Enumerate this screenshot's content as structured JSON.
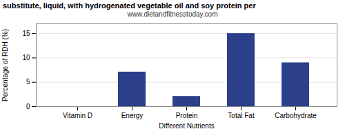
{
  "chart_data": {
    "type": "bar",
    "title": "substitute, liquid, with hydrogenated vegetable oil and soy protein per",
    "subtitle": "www.dietandfitnesstoday.com",
    "xlabel": "Different Nutrients",
    "ylabel": "Percentage of RDH (%)",
    "categories": [
      "Vitamin D",
      "Energy",
      "Protein",
      "Total Fat",
      "Carbohydrate"
    ],
    "values": [
      0,
      7.1,
      2.1,
      15.0,
      9.0
    ],
    "color": "#2B3F8B",
    "ylim": [
      0,
      17
    ],
    "yticks": [
      0,
      5,
      10,
      15
    ],
    "grid": true
  }
}
